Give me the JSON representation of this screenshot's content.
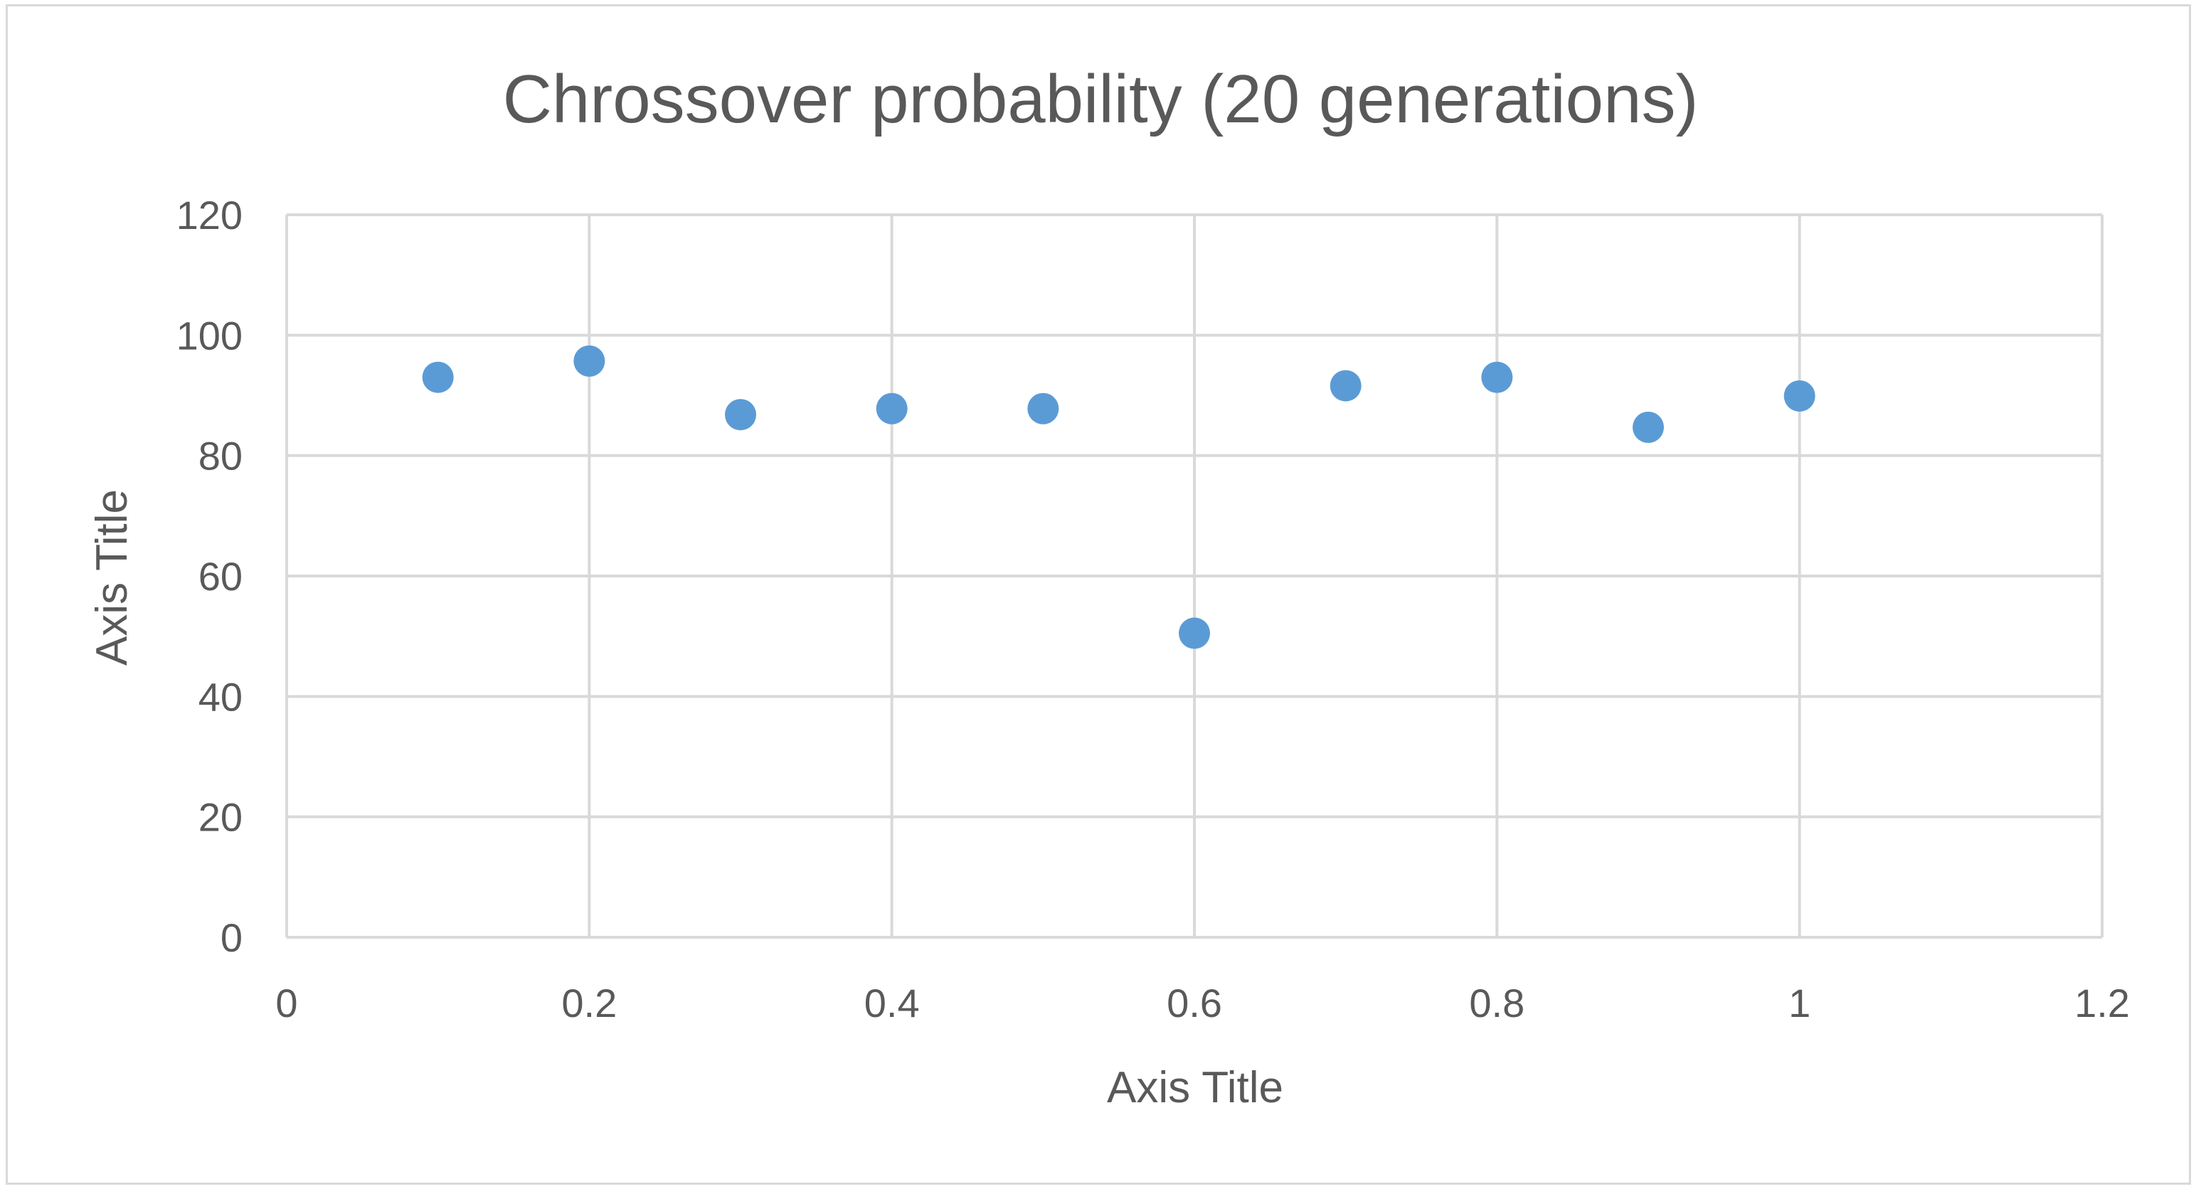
{
  "chart_data": {
    "type": "scatter",
    "title": "Chrossover probability (20 generations)",
    "xlabel": "Axis Title",
    "ylabel": "Axis Title",
    "xlim": [
      0,
      1.2
    ],
    "ylim": [
      0,
      120
    ],
    "x_ticks": [
      0,
      0.2,
      0.4,
      0.6,
      0.8,
      1,
      1.2
    ],
    "y_ticks": [
      0,
      20,
      40,
      60,
      80,
      100,
      120
    ],
    "x_tick_labels": [
      "0",
      "0.2",
      "0.4",
      "0.6",
      "0.8",
      "1",
      "1.2"
    ],
    "y_tick_labels": [
      "0",
      "20",
      "40",
      "60",
      "80",
      "100",
      "120"
    ],
    "grid": true,
    "legend": "none",
    "marker_color": "#5b9bd5",
    "grid_color": "#d9d9d9",
    "text_color": "#595959",
    "series": [
      {
        "x": [
          0.1,
          0.2,
          0.3,
          0.4,
          0.5,
          0.6,
          0.7,
          0.8,
          0.9,
          1.0
        ],
        "y": [
          93,
          95.7,
          86.8,
          87.8,
          87.8,
          50.5,
          91.6,
          93,
          84.7,
          89.9
        ]
      }
    ]
  }
}
